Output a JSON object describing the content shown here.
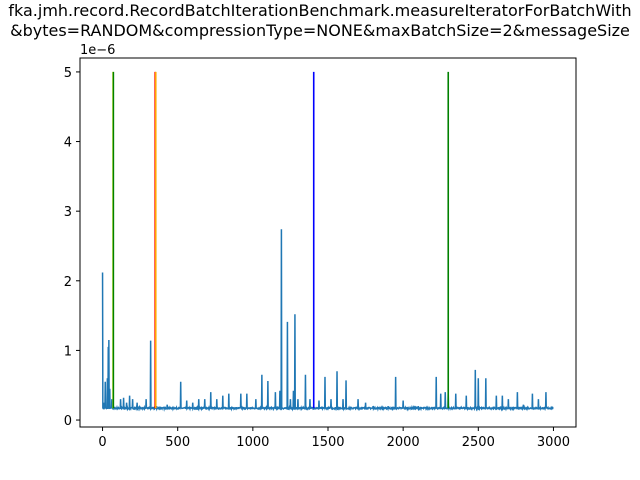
{
  "chart_data": {
    "type": "line",
    "title_lines": [
      "fka.jmh.record.RecordBatchIterationBenchmark.measureIteratorForBatchWith",
      "&bytes=RANDOM&compressionType=NONE&maxBatchSize=2&messageSize"
    ],
    "y_offset_label": "1e−6",
    "xlim": [
      -150,
      3150
    ],
    "ylim": [
      -0.1,
      5.2
    ],
    "x_ticks": [
      0,
      500,
      1000,
      1500,
      2000,
      2500,
      3000
    ],
    "x_tick_labels": [
      "0",
      "500",
      "1000",
      "1500",
      "2000",
      "2500",
      "3000"
    ],
    "y_ticks": [
      0,
      1,
      2,
      3,
      4,
      5
    ],
    "y_tick_labels": [
      "0",
      "1",
      "2",
      "3",
      "4",
      "5"
    ],
    "grid": false,
    "series": [
      {
        "color": "#1f77b4",
        "baseline": 0.17,
        "x": [
          0,
          3000
        ],
        "spikes": [
          [
            0,
            2.12
          ],
          [
            5,
            0.55
          ],
          [
            12,
            0.25
          ],
          [
            18,
            0.55
          ],
          [
            25,
            0.4
          ],
          [
            32,
            0.6
          ],
          [
            38,
            1.05
          ],
          [
            42,
            1.15
          ],
          [
            48,
            0.45
          ],
          [
            55,
            0.55
          ],
          [
            62,
            0.3
          ],
          [
            70,
            0.25
          ],
          [
            120,
            0.3
          ],
          [
            140,
            0.32
          ],
          [
            160,
            0.25
          ],
          [
            180,
            0.35
          ],
          [
            200,
            0.3
          ],
          [
            230,
            0.25
          ],
          [
            265,
            0.82
          ],
          [
            275,
            0.85
          ],
          [
            290,
            0.3
          ],
          [
            320,
            1.14
          ],
          [
            335,
            0.3
          ],
          [
            360,
            0.2
          ],
          [
            430,
            0.22
          ],
          [
            520,
            0.55
          ],
          [
            560,
            0.28
          ],
          [
            600,
            0.25
          ],
          [
            640,
            0.3
          ],
          [
            665,
            0.72
          ],
          [
            680,
            0.3
          ],
          [
            720,
            0.4
          ],
          [
            760,
            0.3
          ],
          [
            800,
            0.35
          ],
          [
            840,
            0.38
          ],
          [
            920,
            0.38
          ],
          [
            960,
            0.38
          ],
          [
            1020,
            0.3
          ],
          [
            1060,
            0.65
          ],
          [
            1100,
            0.56
          ],
          [
            1150,
            0.4
          ],
          [
            1180,
            0.42
          ],
          [
            1190,
            2.74
          ],
          [
            1205,
            0.3
          ],
          [
            1230,
            1.41
          ],
          [
            1250,
            0.3
          ],
          [
            1270,
            0.42
          ],
          [
            1280,
            1.52
          ],
          [
            1300,
            0.3
          ],
          [
            1350,
            0.65
          ],
          [
            1380,
            0.3
          ],
          [
            1440,
            0.28
          ],
          [
            1480,
            0.62
          ],
          [
            1520,
            0.3
          ],
          [
            1545,
            0.83
          ],
          [
            1560,
            0.7
          ],
          [
            1600,
            0.3
          ],
          [
            1620,
            0.57
          ],
          [
            1700,
            0.3
          ],
          [
            1750,
            0.25
          ],
          [
            1800,
            0.2
          ],
          [
            1900,
            0.2
          ],
          [
            1950,
            0.62
          ],
          [
            2000,
            0.28
          ],
          [
            2100,
            0.2
          ],
          [
            2220,
            0.62
          ],
          [
            2250,
            0.38
          ],
          [
            2280,
            0.4
          ],
          [
            2300,
            0.38
          ],
          [
            2350,
            0.38
          ],
          [
            2420,
            0.35
          ],
          [
            2480,
            0.72
          ],
          [
            2500,
            0.6
          ],
          [
            2550,
            0.6
          ],
          [
            2620,
            0.35
          ],
          [
            2660,
            0.35
          ],
          [
            2700,
            0.3
          ],
          [
            2760,
            0.4
          ],
          [
            2800,
            0.22
          ],
          [
            2860,
            0.38
          ],
          [
            2900,
            0.3
          ],
          [
            2950,
            0.4
          ]
        ]
      },
      {
        "color": "#ffff00",
        "x": [
          70,
          70
        ],
        "y": [
          0.17,
          5.0
        ]
      },
      {
        "color": "#008000",
        "x": [
          72,
          72
        ],
        "y": [
          0.17,
          5.0
        ]
      },
      {
        "color": "#ff0000",
        "x": [
          350,
          350
        ],
        "y": [
          0.17,
          5.0
        ]
      },
      {
        "color": "#ffa500",
        "x": [
          354,
          354
        ],
        "y": [
          0.17,
          5.0
        ]
      },
      {
        "color": "#0000ff",
        "x": [
          1405,
          1405
        ],
        "y": [
          0.17,
          5.0
        ]
      },
      {
        "color": "#008000",
        "x": [
          2300,
          2300
        ],
        "y": [
          0.17,
          5.0
        ]
      }
    ]
  }
}
